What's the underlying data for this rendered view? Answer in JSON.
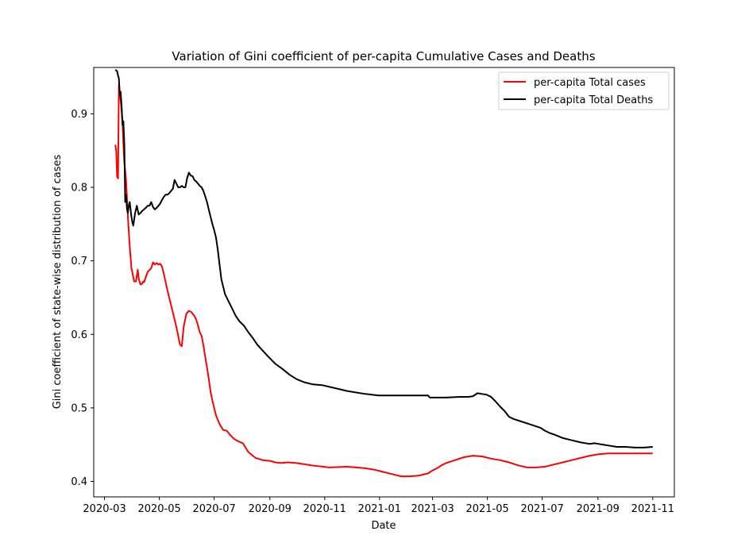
{
  "chart_data": {
    "type": "line",
    "title": "Variation of Gini coefficient of per-capita Cumulative Cases and Deaths",
    "xlabel": "Date",
    "ylabel": "Gini coefficient of state-wise distribution of cases",
    "x_tick_labels": [
      "2020-03",
      "2020-05",
      "2020-07",
      "2020-09",
      "2020-11",
      "2021-01",
      "2021-03",
      "2021-05",
      "2021-07",
      "2021-09",
      "2021-11"
    ],
    "x_tick_days": [
      0,
      61,
      122,
      184,
      245,
      306,
      365,
      426,
      487,
      549,
      610
    ],
    "y_ticks": [
      0.4,
      0.5,
      0.6,
      0.7,
      0.8,
      0.9
    ],
    "y_tick_labels": [
      "0.4",
      "0.5",
      "0.6",
      "0.7",
      "0.8",
      "0.9"
    ],
    "xlim_days": [
      -12,
      634
    ],
    "ylim": [
      0.379,
      0.963
    ],
    "grid": false,
    "legend_position": "top-right",
    "x_unit": "days since 2020-03-01",
    "series": [
      {
        "name": "per-capita Total cases",
        "color": "#ff0000",
        "x": [
          12,
          13,
          14,
          15,
          16,
          17,
          18,
          19,
          20,
          21,
          22,
          24,
          26,
          28,
          30,
          33,
          35,
          37,
          38,
          40,
          42,
          43,
          44,
          46,
          48,
          52,
          54,
          56,
          58,
          60,
          62,
          64,
          66,
          70,
          74,
          80,
          84,
          86,
          88,
          91,
          94,
          97,
          98,
          100,
          102,
          104,
          106,
          108,
          110,
          112,
          114,
          116,
          118,
          120,
          124,
          128,
          132,
          136,
          140,
          144,
          148,
          154,
          160,
          168,
          176,
          184,
          190,
          196,
          204,
          214,
          230,
          250,
          270,
          280,
          290,
          300,
          310,
          320,
          330,
          340,
          350,
          360,
          365,
          370,
          375,
          380,
          390,
          400,
          410,
          420,
          430,
          440,
          450,
          460,
          470,
          480,
          490,
          500,
          510,
          520,
          530,
          540,
          550,
          560,
          570,
          580,
          590,
          600,
          610
        ],
        "y": [
          0.858,
          0.85,
          0.815,
          0.812,
          0.94,
          0.93,
          0.918,
          0.905,
          0.89,
          0.86,
          0.835,
          0.81,
          0.76,
          0.72,
          0.69,
          0.672,
          0.672,
          0.688,
          0.676,
          0.668,
          0.669,
          0.672,
          0.671,
          0.678,
          0.685,
          0.69,
          0.698,
          0.695,
          0.697,
          0.695,
          0.696,
          0.692,
          0.682,
          0.66,
          0.64,
          0.61,
          0.586,
          0.584,
          0.61,
          0.628,
          0.632,
          0.63,
          0.628,
          0.625,
          0.62,
          0.612,
          0.603,
          0.598,
          0.585,
          0.57,
          0.555,
          0.54,
          0.522,
          0.51,
          0.49,
          0.478,
          0.47,
          0.469,
          0.463,
          0.458,
          0.455,
          0.452,
          0.44,
          0.432,
          0.429,
          0.428,
          0.426,
          0.425,
          0.426,
          0.425,
          0.422,
          0.419,
          0.42,
          0.419,
          0.418,
          0.416,
          0.413,
          0.41,
          0.407,
          0.407,
          0.408,
          0.411,
          0.415,
          0.418,
          0.422,
          0.425,
          0.429,
          0.433,
          0.435,
          0.434,
          0.431,
          0.429,
          0.426,
          0.422,
          0.419,
          0.419,
          0.42,
          0.423,
          0.426,
          0.429,
          0.432,
          0.435,
          0.437,
          0.438,
          0.438,
          0.438,
          0.438,
          0.438,
          0.438
        ]
      },
      {
        "name": "per-capita Total Deaths",
        "color": "#000000",
        "x": [
          12,
          14,
          15,
          16,
          17,
          18,
          19,
          20,
          21,
          22,
          23,
          24,
          25,
          26,
          27,
          28,
          29,
          30,
          31,
          32,
          34,
          36,
          38,
          40,
          42,
          44,
          46,
          48,
          50,
          52,
          54,
          56,
          58,
          60,
          62,
          64,
          66,
          68,
          70,
          72,
          74,
          76,
          78,
          80,
          82,
          84,
          86,
          88,
          90,
          92,
          94,
          96,
          98,
          100,
          102,
          104,
          106,
          108,
          110,
          112,
          114,
          116,
          118,
          120,
          122,
          124,
          126,
          128,
          130,
          134,
          138,
          142,
          146,
          150,
          155,
          160,
          165,
          170,
          176,
          182,
          190,
          198,
          206,
          214,
          222,
          232,
          242,
          256,
          270,
          290,
          305,
          320,
          340,
          360,
          362,
          380,
          395,
          405,
          410,
          415,
          420,
          425,
          430,
          435,
          440,
          445,
          450,
          455,
          465,
          475,
          485,
          490,
          495,
          500,
          510,
          520,
          530,
          540,
          545,
          550,
          560,
          570,
          580,
          590,
          600,
          610
        ],
        "y": [
          0.96,
          0.958,
          0.952,
          0.948,
          0.925,
          0.93,
          0.91,
          0.885,
          0.89,
          0.86,
          0.78,
          0.79,
          0.77,
          0.765,
          0.775,
          0.78,
          0.77,
          0.76,
          0.752,
          0.748,
          0.765,
          0.775,
          0.763,
          0.765,
          0.768,
          0.77,
          0.772,
          0.775,
          0.775,
          0.78,
          0.773,
          0.77,
          0.772,
          0.775,
          0.778,
          0.783,
          0.787,
          0.79,
          0.79,
          0.792,
          0.795,
          0.798,
          0.81,
          0.805,
          0.8,
          0.8,
          0.802,
          0.8,
          0.8,
          0.813,
          0.82,
          0.816,
          0.815,
          0.81,
          0.808,
          0.805,
          0.802,
          0.8,
          0.795,
          0.788,
          0.78,
          0.77,
          0.76,
          0.75,
          0.742,
          0.732,
          0.715,
          0.695,
          0.675,
          0.655,
          0.645,
          0.635,
          0.625,
          0.618,
          0.612,
          0.603,
          0.595,
          0.586,
          0.578,
          0.57,
          0.56,
          0.553,
          0.545,
          0.539,
          0.535,
          0.532,
          0.531,
          0.527,
          0.523,
          0.519,
          0.517,
          0.517,
          0.517,
          0.517,
          0.514,
          0.514,
          0.515,
          0.515,
          0.516,
          0.52,
          0.519,
          0.518,
          0.515,
          0.509,
          0.502,
          0.496,
          0.488,
          0.485,
          0.481,
          0.477,
          0.473,
          0.469,
          0.466,
          0.464,
          0.459,
          0.456,
          0.453,
          0.451,
          0.452,
          0.451,
          0.449,
          0.447,
          0.447,
          0.446,
          0.446,
          0.447
        ]
      }
    ]
  }
}
